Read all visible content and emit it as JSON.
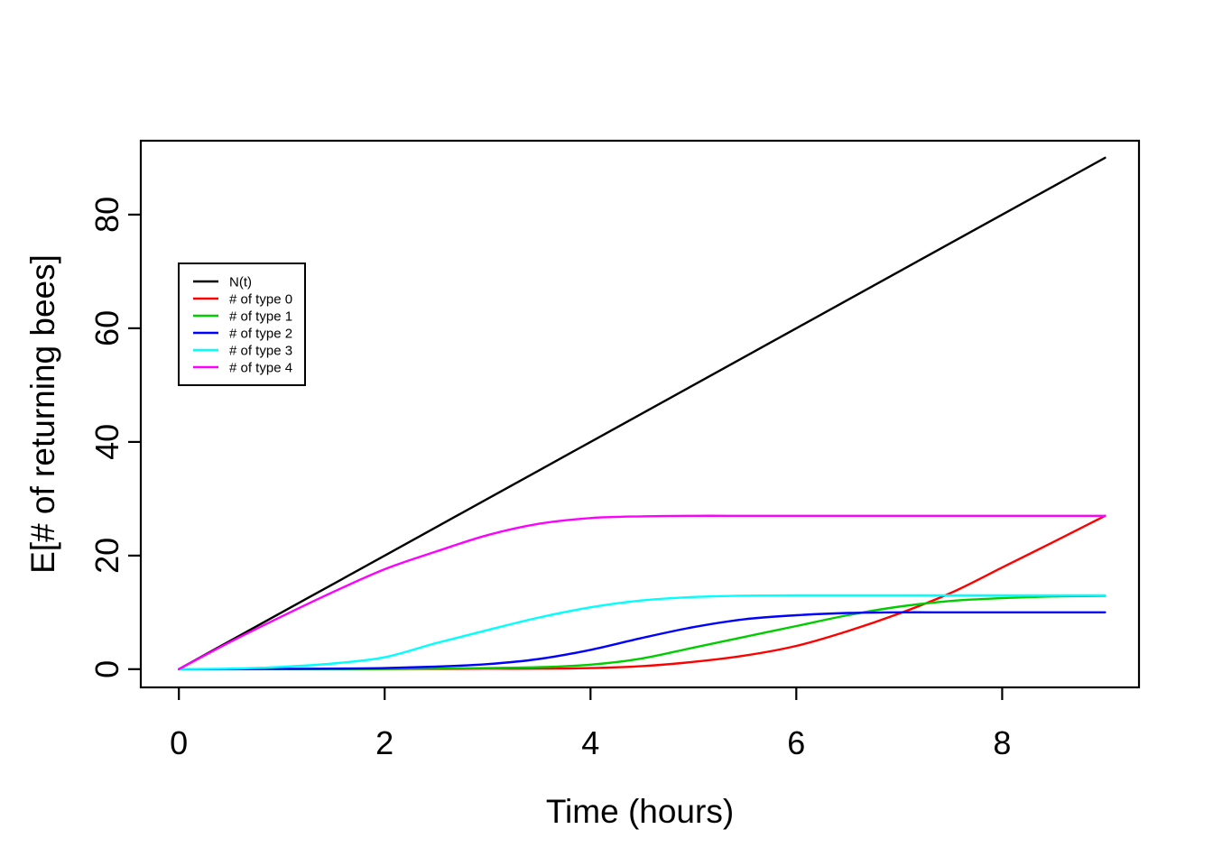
{
  "figure": {
    "background": "#ffffff",
    "frame_color": "#000000"
  },
  "chart_data": {
    "type": "line",
    "title": "",
    "xlabel": "Time (hours)",
    "ylabel": "E[# of returning bees]",
    "grid": false,
    "xlim": [
      -0.37,
      9.33
    ],
    "ylim": [
      -3.2,
      93
    ],
    "x_ticks": [
      0,
      2,
      4,
      6,
      8
    ],
    "y_ticks": [
      0,
      20,
      40,
      60,
      80
    ],
    "x": [
      0,
      0.5,
      1,
      1.5,
      2,
      2.5,
      3,
      3.5,
      4,
      4.5,
      5,
      5.5,
      6,
      6.5,
      7,
      7.5,
      8,
      8.5,
      9
    ],
    "series": [
      {
        "id": "nt",
        "name": "N(t)",
        "color": "#000000",
        "values": [
          0,
          5,
          10,
          15,
          20,
          25,
          30,
          35,
          40,
          45,
          50,
          55,
          60,
          65,
          70,
          75,
          80,
          85,
          90
        ]
      },
      {
        "id": "type0",
        "name": "# of type 0",
        "color": "#FF0000",
        "values": [
          0,
          0,
          0,
          0,
          0.05,
          0.05,
          0.1,
          0.1,
          0.2,
          0.55,
          1.3,
          2.4,
          4.1,
          6.7,
          9.8,
          13.4,
          17.9,
          22.4,
          27
        ]
      },
      {
        "id": "type1",
        "name": "# of type 1",
        "color": "#00CD00",
        "values": [
          0,
          0,
          0,
          0,
          0.05,
          0.1,
          0.2,
          0.35,
          0.8,
          1.9,
          3.8,
          5.7,
          7.6,
          9.5,
          11,
          12,
          12.5,
          12.8,
          12.9
        ]
      },
      {
        "id": "type2",
        "name": "# of type 2",
        "color": "#0000FF",
        "values": [
          0,
          0.02,
          0.05,
          0.1,
          0.2,
          0.45,
          0.9,
          1.8,
          3.4,
          5.5,
          7.4,
          8.8,
          9.5,
          9.9,
          10,
          10,
          10,
          10,
          10
        ]
      },
      {
        "id": "type3",
        "name": "# of type 3",
        "color": "#00FFFF",
        "values": [
          0,
          0.1,
          0.4,
          1,
          2.1,
          4.6,
          6.9,
          9.1,
          10.9,
          12.1,
          12.7,
          12.95,
          13,
          13,
          13,
          13,
          13,
          13,
          13
        ]
      },
      {
        "id": "type4",
        "name": "# of type 4",
        "color": "#FF00FF",
        "values": [
          0,
          4.8,
          9.3,
          13.6,
          17.6,
          20.7,
          23.6,
          25.6,
          26.6,
          26.9,
          27,
          27,
          27,
          27,
          27,
          27,
          27,
          27,
          27
        ]
      }
    ],
    "legend": {
      "position": "upper-left-inside",
      "items": [
        "N(t)",
        "# of type 0",
        "# of type 1",
        "# of type 2",
        "# of type 3",
        "# of type 4"
      ]
    }
  }
}
